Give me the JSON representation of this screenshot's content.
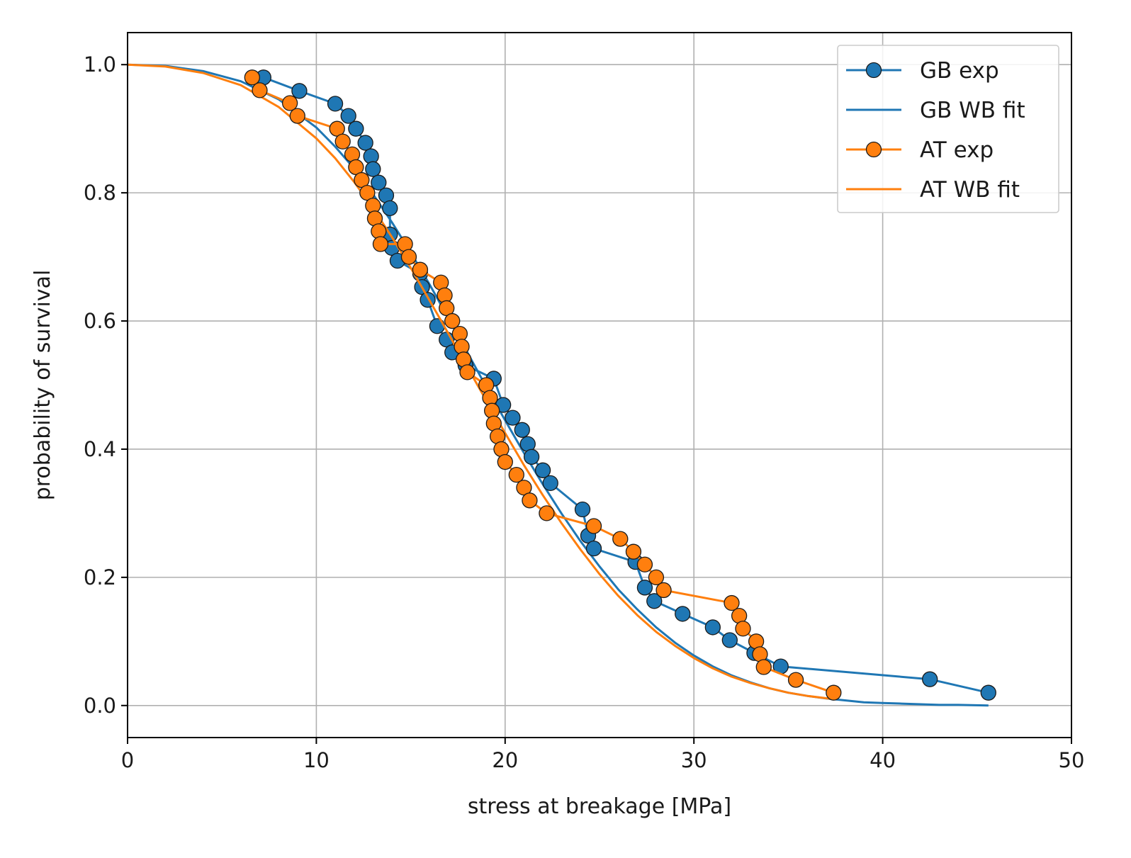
{
  "chart_data": {
    "type": "line",
    "title": "",
    "xlabel": "stress at breakage [MPa]",
    "ylabel": "probability of survival",
    "xlim": [
      0,
      50
    ],
    "ylim": [
      -0.05,
      1.05
    ],
    "xticks": [
      0,
      10,
      20,
      30,
      40,
      50
    ],
    "yticks": [
      0.0,
      0.2,
      0.4,
      0.6,
      0.8,
      1.0
    ],
    "xtick_labels": [
      "0",
      "10",
      "20",
      "30",
      "40",
      "50"
    ],
    "ytick_labels": [
      "0.0",
      "0.2",
      "0.4",
      "0.6",
      "0.8",
      "1.0"
    ],
    "grid": true,
    "legend_position": "top-right",
    "colors": {
      "GB": "#1f77b4",
      "AT": "#ff7f0e"
    },
    "series": [
      {
        "name": "GB exp",
        "style": "line-markers",
        "color": "#1f77b4",
        "x": [
          7.2,
          9.1,
          11.0,
          11.7,
          12.1,
          12.6,
          12.9,
          13.0,
          13.3,
          13.7,
          13.9,
          13.9,
          14.0,
          14.3,
          15.5,
          15.6,
          15.9,
          16.4,
          16.9,
          17.2,
          17.9,
          19.4,
          19.9,
          20.4,
          20.9,
          21.2,
          21.4,
          22.0,
          22.4,
          24.1,
          24.4,
          24.7,
          26.9,
          27.4,
          27.9,
          29.4,
          31.0,
          31.9,
          33.2,
          34.6,
          42.5,
          45.6
        ],
        "y": [
          0.98,
          0.959,
          0.939,
          0.92,
          0.9,
          0.878,
          0.857,
          0.837,
          0.816,
          0.796,
          0.776,
          0.735,
          0.714,
          0.694,
          0.674,
          0.653,
          0.633,
          0.592,
          0.571,
          0.551,
          0.531,
          0.51,
          0.469,
          0.449,
          0.43,
          0.408,
          0.388,
          0.367,
          0.347,
          0.306,
          0.265,
          0.245,
          0.224,
          0.184,
          0.163,
          0.143,
          0.122,
          0.102,
          0.082,
          0.061,
          0.041,
          0.02
        ]
      },
      {
        "name": "GB WB fit",
        "style": "line",
        "color": "#1f77b4",
        "x": [
          0,
          2,
          4,
          6,
          8,
          10,
          11,
          12,
          13,
          14,
          15,
          16,
          17,
          18,
          19,
          20,
          21,
          22,
          23,
          24,
          25,
          26,
          27,
          28,
          29,
          30,
          31,
          32,
          33,
          34,
          35,
          36,
          37,
          38,
          39,
          40,
          41,
          42,
          43,
          44,
          45.6
        ],
        "y": [
          1.0,
          0.998,
          0.99,
          0.974,
          0.946,
          0.902,
          0.872,
          0.838,
          0.798,
          0.754,
          0.707,
          0.657,
          0.604,
          0.551,
          0.497,
          0.445,
          0.394,
          0.345,
          0.299,
          0.256,
          0.217,
          0.181,
          0.15,
          0.122,
          0.098,
          0.078,
          0.061,
          0.047,
          0.036,
          0.027,
          0.02,
          0.015,
          0.011,
          0.008,
          0.005,
          0.004,
          0.003,
          0.002,
          0.001,
          0.001,
          0.0
        ]
      },
      {
        "name": "AT exp",
        "style": "line-markers",
        "color": "#ff7f0e",
        "x": [
          6.6,
          7.0,
          8.6,
          9.0,
          11.1,
          11.4,
          11.9,
          12.1,
          12.4,
          12.7,
          13.0,
          13.1,
          13.3,
          13.4,
          14.7,
          14.9,
          15.5,
          16.6,
          16.8,
          16.9,
          17.2,
          17.6,
          17.7,
          17.8,
          18.0,
          19.0,
          19.2,
          19.3,
          19.4,
          19.6,
          19.8,
          20.0,
          20.6,
          21.0,
          21.3,
          22.2,
          24.7,
          26.1,
          26.8,
          27.4,
          28.0,
          28.4,
          32.0,
          32.4,
          32.6,
          33.3,
          33.5,
          33.7,
          35.4,
          37.4
        ],
        "y": [
          0.98,
          0.96,
          0.94,
          0.92,
          0.9,
          0.88,
          0.86,
          0.84,
          0.82,
          0.8,
          0.78,
          0.76,
          0.74,
          0.72,
          0.72,
          0.7,
          0.68,
          0.66,
          0.64,
          0.62,
          0.6,
          0.58,
          0.56,
          0.54,
          0.52,
          0.5,
          0.48,
          0.46,
          0.44,
          0.42,
          0.4,
          0.38,
          0.36,
          0.34,
          0.32,
          0.3,
          0.28,
          0.26,
          0.24,
          0.22,
          0.2,
          0.18,
          0.16,
          0.14,
          0.12,
          0.1,
          0.08,
          0.06,
          0.04,
          0.02
        ]
      },
      {
        "name": "AT WB fit",
        "style": "line",
        "color": "#ff7f0e",
        "x": [
          0,
          2,
          4,
          6,
          8,
          10,
          11,
          12,
          13,
          14,
          15,
          16,
          17,
          18,
          19,
          20,
          21,
          22,
          23,
          24,
          25,
          26,
          27,
          28,
          29,
          30,
          31,
          32,
          33,
          34,
          35,
          36,
          37.4
        ],
        "y": [
          1.0,
          0.997,
          0.987,
          0.968,
          0.934,
          0.885,
          0.854,
          0.817,
          0.776,
          0.731,
          0.683,
          0.632,
          0.58,
          0.528,
          0.476,
          0.425,
          0.375,
          0.328,
          0.284,
          0.243,
          0.205,
          0.171,
          0.141,
          0.115,
          0.093,
          0.074,
          0.058,
          0.045,
          0.035,
          0.027,
          0.02,
          0.015,
          0.01
        ]
      }
    ]
  }
}
